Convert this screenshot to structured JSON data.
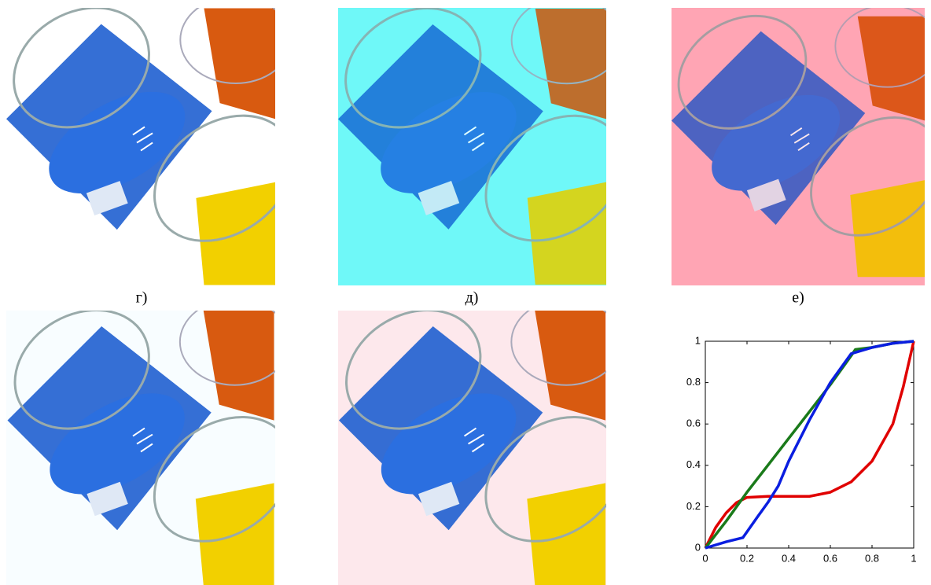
{
  "labels": [
    "г)",
    "д)",
    "е)"
  ],
  "chart_data": {
    "type": "line",
    "xlim": [
      0,
      1
    ],
    "ylim": [
      0,
      1
    ],
    "xticks": [
      0,
      0.2,
      0.4,
      0.6,
      0.8,
      1
    ],
    "yticks": [
      0,
      0.2,
      0.4,
      0.6,
      0.8,
      1
    ],
    "series": [
      {
        "color": "#e00000",
        "x": [
          0,
          0.05,
          0.1,
          0.15,
          0.2,
          0.3,
          0.4,
          0.5,
          0.6,
          0.7,
          0.8,
          0.9,
          0.95,
          1
        ],
        "values": [
          0,
          0.1,
          0.17,
          0.22,
          0.245,
          0.25,
          0.25,
          0.25,
          0.27,
          0.32,
          0.42,
          0.6,
          0.78,
          1
        ]
      },
      {
        "color": "#1a7a1a",
        "x": [
          0,
          0.1,
          0.2,
          0.3,
          0.4,
          0.5,
          0.6,
          0.7,
          0.72,
          0.8,
          0.9,
          1
        ],
        "values": [
          0,
          0.13,
          0.27,
          0.4,
          0.53,
          0.66,
          0.79,
          0.93,
          0.96,
          0.97,
          0.99,
          1
        ]
      },
      {
        "color": "#0a1ee0",
        "x": [
          0,
          0.1,
          0.18,
          0.25,
          0.3,
          0.35,
          0.4,
          0.5,
          0.6,
          0.7,
          0.8,
          0.9,
          1
        ],
        "values": [
          0,
          0.03,
          0.05,
          0.15,
          0.22,
          0.3,
          0.42,
          0.62,
          0.8,
          0.94,
          0.97,
          0.99,
          1
        ]
      }
    ]
  }
}
